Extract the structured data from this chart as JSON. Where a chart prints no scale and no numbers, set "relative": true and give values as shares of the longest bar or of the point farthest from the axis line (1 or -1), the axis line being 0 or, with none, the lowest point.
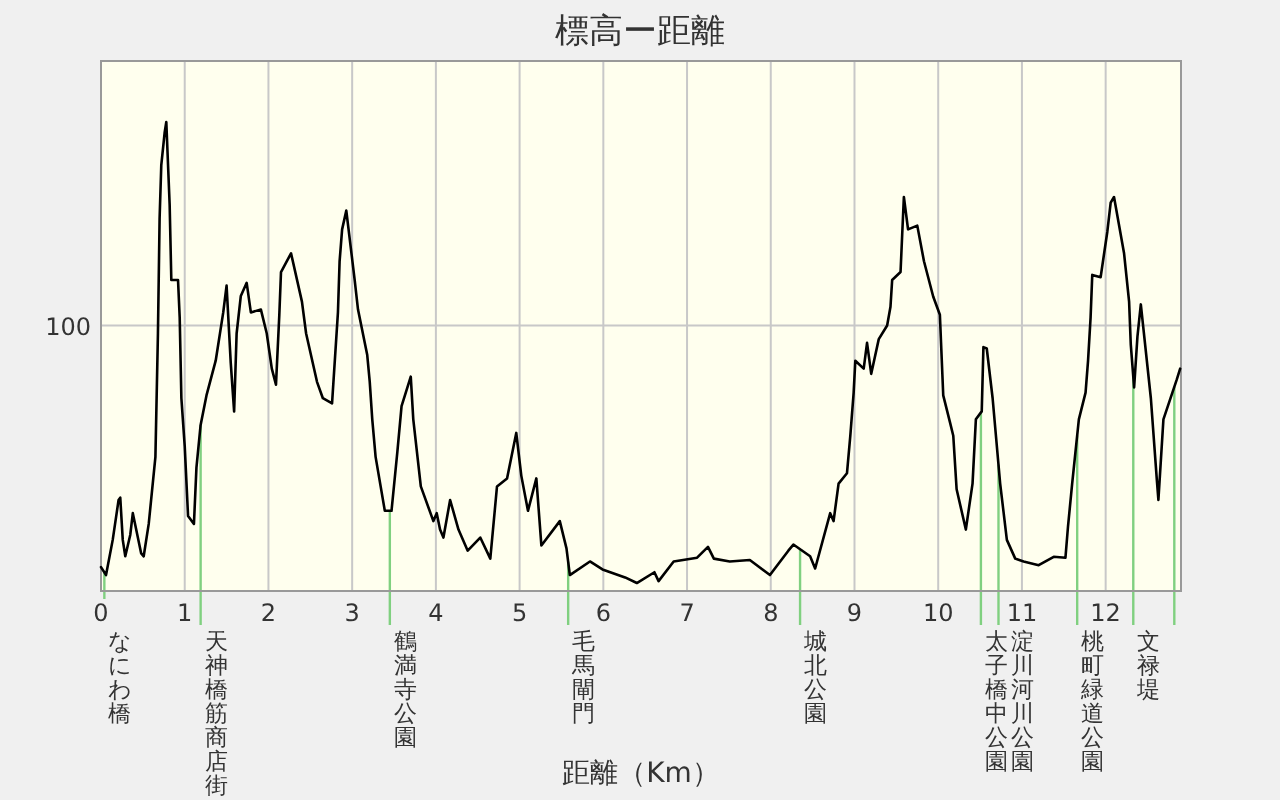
{
  "chart_data": {
    "type": "line",
    "title": "標高ー距離",
    "xlabel": "距離（Km）",
    "relative": true,
    "annotations": [
      "100"
    ],
    "x": [
      0,
      0.06,
      0.14,
      0.21,
      0.23,
      0.26,
      0.29,
      0.35,
      0.38,
      0.48,
      0.51,
      0.57,
      0.65,
      0.68,
      0.7,
      0.72,
      0.76,
      0.78,
      0.82,
      0.84,
      0.92,
      0.94,
      0.96,
      1.0,
      1.04,
      1.11,
      1.14,
      1.19,
      1.26,
      1.37,
      1.46,
      1.5,
      1.55,
      1.59,
      1.62,
      1.67,
      1.74,
      1.79,
      1.91,
      1.98,
      2.04,
      2.09,
      2.13,
      2.15,
      2.27,
      2.4,
      2.45,
      2.58,
      2.65,
      2.76,
      2.83,
      2.85,
      2.88,
      2.93,
      3.03,
      3.07,
      3.18,
      3.21,
      3.24,
      3.28,
      3.39,
      3.47,
      3.54,
      3.59,
      3.7,
      3.73,
      3.82,
      3.97,
      4.01,
      4.05,
      4.09,
      4.17,
      4.27,
      4.38,
      4.53,
      4.65,
      4.73,
      4.85,
      4.96,
      5.02,
      5.1,
      5.2,
      5.26,
      5.48,
      5.56,
      5.6,
      5.84,
      5.99,
      6.26,
      6.4,
      6.61,
      6.66,
      6.84,
      7.12,
      7.25,
      7.32,
      7.51,
      7.75,
      7.99,
      8.21,
      8.27,
      8.47,
      8.53,
      8.71,
      8.75,
      8.81,
      8.91,
      8.95,
      8.99,
      9.01,
      9.11,
      9.15,
      9.2,
      9.29,
      9.39,
      9.43,
      9.45,
      9.55,
      9.57,
      9.59,
      9.64,
      9.75,
      9.83,
      9.94,
      10.02,
      10.06,
      10.14,
      10.18,
      10.22,
      10.33,
      10.41,
      10.45,
      10.52,
      10.54,
      10.58,
      10.65,
      10.74,
      10.82,
      10.92,
      11.02,
      11.2,
      11.38,
      11.52,
      11.55,
      11.6,
      11.68,
      11.76,
      11.79,
      11.82,
      11.84,
      11.94,
      12.02,
      12.06,
      12.1,
      12.22,
      12.28,
      12.3,
      12.34,
      12.38,
      12.42,
      12.54,
      12.61,
      12.63,
      12.69,
      12.85,
      12.89
    ],
    "series": [
      {
        "color": "#000000",
        "values": [
          0.051,
          0.034,
          0.109,
          0.194,
          0.199,
          0.109,
          0.074,
          0.12,
          0.166,
          0.08,
          0.074,
          0.143,
          0.286,
          0.549,
          0.794,
          0.908,
          0.977,
          1.0,
          0.823,
          0.663,
          0.663,
          0.583,
          0.411,
          0.309,
          0.16,
          0.143,
          0.263,
          0.354,
          0.417,
          0.491,
          0.594,
          0.651,
          0.486,
          0.383,
          0.549,
          0.629,
          0.657,
          0.594,
          0.6,
          0.549,
          0.474,
          0.44,
          0.589,
          0.68,
          0.72,
          0.617,
          0.549,
          0.446,
          0.411,
          0.4,
          0.594,
          0.703,
          0.771,
          0.811,
          0.663,
          0.6,
          0.503,
          0.446,
          0.366,
          0.286,
          0.171,
          0.171,
          0.297,
          0.394,
          0.457,
          0.366,
          0.223,
          0.149,
          0.166,
          0.131,
          0.114,
          0.194,
          0.131,
          0.086,
          0.114,
          0.069,
          0.223,
          0.24,
          0.337,
          0.246,
          0.171,
          0.24,
          0.097,
          0.149,
          0.091,
          0.034,
          0.063,
          0.046,
          0.029,
          0.017,
          0.04,
          0.021,
          0.063,
          0.071,
          0.094,
          0.069,
          0.063,
          0.066,
          0.034,
          0.086,
          0.099,
          0.074,
          0.048,
          0.166,
          0.149,
          0.229,
          0.251,
          0.331,
          0.423,
          0.491,
          0.474,
          0.529,
          0.463,
          0.537,
          0.566,
          0.606,
          0.663,
          0.68,
          0.76,
          0.84,
          0.771,
          0.779,
          0.703,
          0.628,
          0.589,
          0.417,
          0.36,
          0.331,
          0.217,
          0.131,
          0.229,
          0.366,
          0.383,
          0.52,
          0.517,
          0.411,
          0.229,
          0.109,
          0.069,
          0.063,
          0.055,
          0.073,
          0.071,
          0.137,
          0.229,
          0.366,
          0.423,
          0.491,
          0.583,
          0.674,
          0.669,
          0.766,
          0.828,
          0.84,
          0.72,
          0.617,
          0.526,
          0.434,
          0.543,
          0.611,
          0.411,
          0.24,
          0.194,
          0.366,
          0.451,
          0.474
        ]
      }
    ],
    "xlim": [
      0,
      12.9
    ],
    "xticks": [
      0,
      1,
      2,
      3,
      4,
      5,
      6,
      7,
      8,
      9,
      10,
      11,
      12
    ],
    "grid": "x",
    "ref_lines": [
      {
        "axis": "y",
        "value": 0.566,
        "color": "#c8c8c8"
      },
      {
        "axis": "x",
        "value": 0.04,
        "label": "なにわ橋",
        "color": "#80d080"
      },
      {
        "axis": "x",
        "value": 1.19,
        "label": "天神橋筋商店街",
        "color": "#80d080"
      },
      {
        "axis": "x",
        "value": 3.45,
        "label": "鶴満寺公園",
        "color": "#80d080"
      },
      {
        "axis": "x",
        "value": 5.58,
        "label": "毛馬閘門",
        "color": "#80d080"
      },
      {
        "axis": "x",
        "value": 8.35,
        "label": "城北公園",
        "color": "#80d080"
      },
      {
        "axis": "x",
        "value": 10.51,
        "label": "太子橋中公園",
        "color": "#80d080"
      },
      {
        "axis": "x",
        "value": 10.72,
        "label": "淀川河川公園",
        "color": "#80d080"
      },
      {
        "axis": "x",
        "value": 11.66,
        "label": "桃町緑道公園",
        "color": "#80d080"
      },
      {
        "axis": "x",
        "value": 12.33,
        "label": "文禄堤",
        "color": "#80d080"
      },
      {
        "axis": "x",
        "value": 12.82,
        "color": "#80d080"
      }
    ]
  }
}
